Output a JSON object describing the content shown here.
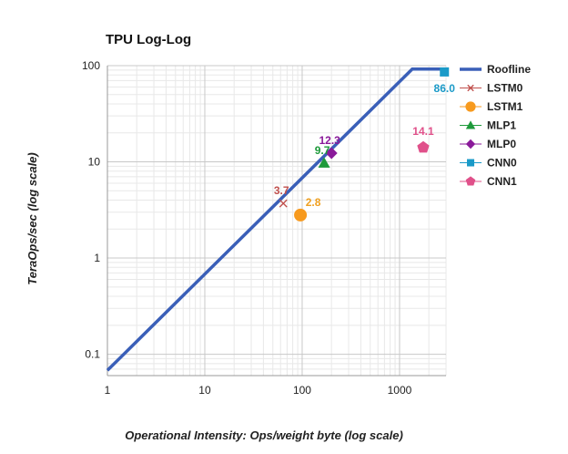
{
  "chart_data": {
    "type": "scatter",
    "title": "TPU Log-Log",
    "xlabel": "Operational Intensity: Ops/weight byte (log scale)",
    "ylabel": "TeraOps/sec (log scale)",
    "xscale": "log",
    "yscale": "log",
    "xlim": [
      1,
      3000
    ],
    "ylim": [
      0.06,
      100
    ],
    "x_ticks": [
      1,
      10,
      100,
      1000
    ],
    "x_tick_labels": [
      "1",
      "10",
      "100",
      "1000"
    ],
    "y_ticks": [
      0.1,
      1,
      10,
      100
    ],
    "y_tick_labels": [
      "0.1",
      "1",
      "10",
      "100"
    ],
    "grid": true,
    "legend_position": "right",
    "roofline": {
      "name": "Roofline",
      "color": "#3a5fb8",
      "points": [
        [
          1,
          0.068
        ],
        [
          1350,
          92
        ],
        [
          3000,
          92
        ]
      ]
    },
    "series": [
      {
        "name": "LSTM0",
        "x": 64,
        "y": 3.7,
        "label": "3.7",
        "color": "#c0504d",
        "label_color": "#c0504d",
        "marker": "x"
      },
      {
        "name": "LSTM1",
        "x": 96,
        "y": 2.8,
        "label": "2.8",
        "color": "#f79a1e",
        "label_color": "#f0a020",
        "marker": "circle"
      },
      {
        "name": "MLP1",
        "x": 168,
        "y": 9.7,
        "label": "9.7",
        "color": "#1e9a3b",
        "label_color": "#1e9a3b",
        "marker": "triangle"
      },
      {
        "name": "MLP0",
        "x": 200,
        "y": 12.3,
        "label": "12.3",
        "color": "#8a1a9a",
        "label_color": "#8a1a9a",
        "marker": "diamond"
      },
      {
        "name": "CNN0",
        "x": 2888,
        "y": 86.0,
        "label": "86.0",
        "color": "#1a9ac8",
        "label_color": "#1a9ac8",
        "marker": "square"
      },
      {
        "name": "CNN1",
        "x": 1750,
        "y": 14.1,
        "label": "14.1",
        "color": "#e0508a",
        "label_color": "#e0508a",
        "marker": "pentagon"
      }
    ]
  }
}
